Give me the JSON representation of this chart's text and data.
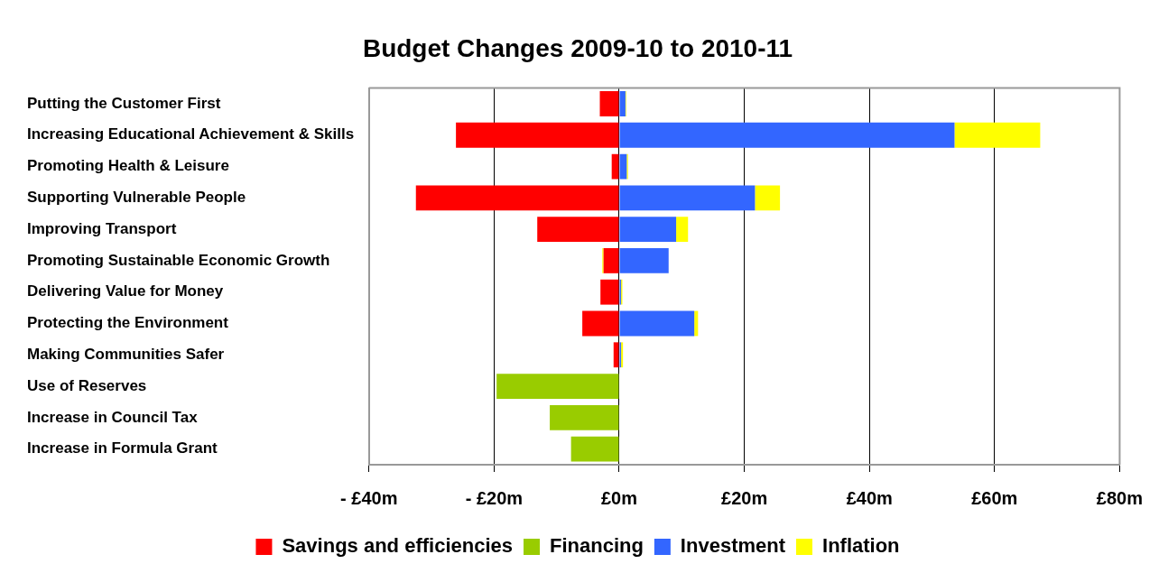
{
  "chart_data": {
    "type": "bar",
    "orientation": "horizontal",
    "stacked": true,
    "title": "Budget Changes 2009-10 to 2010-11",
    "categories": [
      "Putting the Customer First",
      "Increasing Educational Achievement & Skills",
      "Promoting Health & Leisure",
      "Supporting Vulnerable People",
      "Improving Transport",
      "Promoting Sustainable Economic Growth",
      "Delivering Value for Money",
      "Protecting the Environment",
      "Making Communities Safer",
      "Use of Reserves",
      "Increase in Council Tax",
      "Increase in Formula Grant"
    ],
    "series": [
      {
        "name": "Savings and efficiencies",
        "color": "#ff0000",
        "values": [
          -3.1,
          -26.1,
          -1.2,
          -32.5,
          -13.1,
          -2.5,
          -3.0,
          -5.9,
          -0.9,
          null,
          null,
          null
        ]
      },
      {
        "name": "Financing",
        "color": "#99cc00",
        "values": [
          null,
          null,
          null,
          null,
          null,
          null,
          null,
          null,
          null,
          -19.6,
          -11.1,
          -7.7
        ]
      },
      {
        "name": "Investment",
        "color": "#3366ff",
        "values": [
          1.0,
          53.6,
          1.2,
          21.7,
          9.1,
          7.9,
          0.3,
          12.0,
          0.3,
          null,
          null,
          null
        ]
      },
      {
        "name": "Inflation",
        "color": "#ffff00",
        "values": [
          0.1,
          13.7,
          0.2,
          4.0,
          1.9,
          -0.2,
          0.2,
          0.6,
          0.3,
          null,
          null,
          null
        ]
      }
    ],
    "xlim": [
      -40,
      80
    ],
    "xticks": [
      {
        "value": -40,
        "label": "- £40m"
      },
      {
        "value": -20,
        "label": "- £20m"
      },
      {
        "value": 0,
        "label": "£0m"
      },
      {
        "value": 20,
        "label": "£20m"
      },
      {
        "value": 40,
        "label": "£40m"
      },
      {
        "value": 60,
        "label": "£60m"
      },
      {
        "value": 80,
        "label": "£80m"
      }
    ],
    "grid": "x",
    "legend": "bottom"
  }
}
